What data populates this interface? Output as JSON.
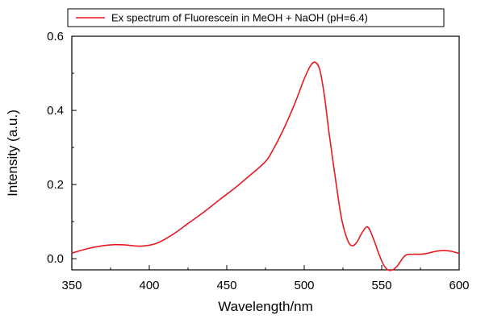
{
  "chart_data": {
    "type": "line",
    "xlabel": "Wavelength/nm",
    "ylabel": "Intensity (a.u.)",
    "xlim": [
      350,
      600
    ],
    "ylim": [
      -0.03,
      0.6
    ],
    "x_ticks": [
      350,
      400,
      450,
      500,
      550,
      600
    ],
    "x_tick_labels": [
      "350",
      "400",
      "450",
      "500",
      "550",
      "600"
    ],
    "y_ticks": [
      0.0,
      0.2,
      0.4,
      0.6
    ],
    "y_tick_labels": [
      "0.0",
      "0.2",
      "0.4",
      "0.6"
    ],
    "grid": false,
    "legend_position": "top",
    "series": [
      {
        "name": "Ex spectrum of Fluorescein in MeOH + NaOH (pH=6.4)",
        "color": "#e8191f",
        "x": [
          350,
          360,
          370,
          378,
          385,
          395,
          405,
          415,
          425,
          435,
          445,
          455,
          465,
          475,
          480,
          485,
          490,
          495,
          500,
          504,
          507,
          510,
          513,
          516,
          520,
          524,
          528,
          531,
          534,
          537,
          540,
          542,
          545,
          548,
          551,
          554,
          557,
          560,
          565,
          570,
          575,
          580,
          585,
          590,
          595,
          600
        ],
        "y": [
          0.015,
          0.027,
          0.035,
          0.038,
          0.037,
          0.034,
          0.042,
          0.065,
          0.095,
          0.125,
          0.158,
          0.19,
          0.225,
          0.262,
          0.295,
          0.335,
          0.38,
          0.43,
          0.485,
          0.52,
          0.53,
          0.51,
          0.44,
          0.34,
          0.22,
          0.11,
          0.05,
          0.035,
          0.045,
          0.068,
          0.085,
          0.08,
          0.05,
          0.015,
          -0.015,
          -0.03,
          -0.03,
          -0.02,
          0.008,
          0.012,
          0.012,
          0.015,
          0.02,
          0.022,
          0.02,
          0.014
        ]
      }
    ]
  }
}
